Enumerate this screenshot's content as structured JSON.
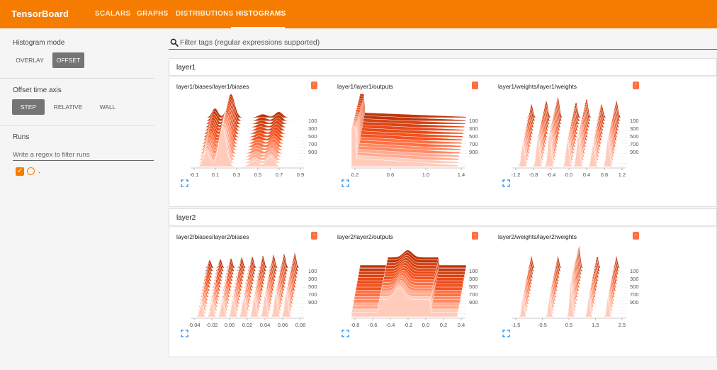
{
  "app": {
    "brand": "TensorBoard",
    "accent_color": "#f57c00",
    "tabs": [
      {
        "label": "SCALARS",
        "active": false
      },
      {
        "label": "GRAPHS",
        "active": false
      },
      {
        "label": "DISTRIBUTIONS",
        "active": false
      },
      {
        "label": "HISTOGRAMS",
        "active": true
      }
    ]
  },
  "sidebar": {
    "histogram_mode": {
      "title": "Histogram mode",
      "options": [
        "OVERLAY",
        "OFFSET"
      ],
      "selected": "OFFSET"
    },
    "offset_axis": {
      "title": "Offset time axis",
      "options": [
        "STEP",
        "RELATIVE",
        "WALL"
      ],
      "selected": "STEP"
    },
    "runs": {
      "title": "Runs",
      "filter_placeholder": "Write a regex to filter runs",
      "items": [
        {
          "name": ".",
          "checked": true,
          "color": "#f57c00"
        }
      ]
    }
  },
  "main": {
    "tag_filter_placeholder": "Filter tags (regular expressions supported)",
    "groups": [
      {
        "name": "layer1",
        "cards": [
          {
            "title": "layer1/biases/layer1/biases",
            "x_ticks": [
              "-0.1",
              "0.1",
              "0.3",
              "0.5",
              "0.7",
              "0.9"
            ],
            "y_ticks": [
              "100",
              "300",
              "500",
              "700",
              "900"
            ]
          },
          {
            "title": "layer1/layer1/outputs",
            "x_ticks": [
              "0.2",
              "0.6",
              "1.0",
              "1.4"
            ],
            "y_ticks": [
              "100",
              "300",
              "500",
              "700",
              "900"
            ]
          },
          {
            "title": "layer1/weights/layer1/weights",
            "x_ticks": [
              "-1.2",
              "-0.8",
              "-0.4",
              "0.0",
              "0.4",
              "0.8",
              "1.2"
            ],
            "y_ticks": [
              "100",
              "300",
              "500",
              "700",
              "900"
            ]
          }
        ]
      },
      {
        "name": "layer2",
        "cards": [
          {
            "title": "layer2/biases/layer2/biases",
            "x_ticks": [
              "-0.04",
              "-0.02",
              "0.00",
              "0.02",
              "0.04",
              "0.06",
              "0.08"
            ],
            "y_ticks": [
              "100",
              "300",
              "500",
              "700",
              "900"
            ]
          },
          {
            "title": "layer2/layer2/outputs",
            "x_ticks": [
              "-0.8",
              "-0.6",
              "-0.4",
              "-0.2",
              "0.0",
              "0.2",
              "0.4"
            ],
            "y_ticks": [
              "100",
              "300",
              "500",
              "700",
              "900"
            ]
          },
          {
            "title": "layer2/weights/layer2/weights",
            "x_ticks": [
              "-1.5",
              "-0.5",
              "0.5",
              "1.5",
              "2.5"
            ],
            "y_ticks": [
              "100",
              "300",
              "500",
              "700",
              "900"
            ]
          }
        ]
      }
    ]
  },
  "icons": {
    "search": "search-icon",
    "expand": "expand-icon",
    "check": "checkbox-icon"
  }
}
